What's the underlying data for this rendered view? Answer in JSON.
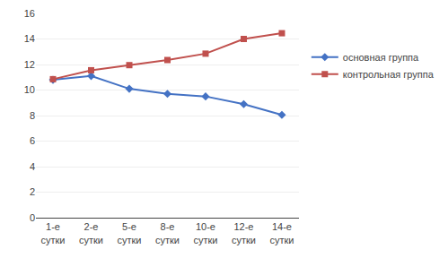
{
  "chart_data": {
    "type": "line",
    "categories": [
      "1-е\nсутки",
      "2-е\nсутки",
      "5-е\nсутки",
      "8-е\nсутки",
      "10-е\nсутки",
      "12-е\nсутки",
      "14-е\nсутки"
    ],
    "series": [
      {
        "name": "основная группа",
        "color": "#4472C4",
        "marker": "diamond",
        "values": [
          10.8,
          11.1,
          10.1,
          9.7,
          9.5,
          8.9,
          8.05
        ]
      },
      {
        "name": "контрольная группа",
        "color": "#C0504D",
        "marker": "square",
        "values": [
          10.85,
          11.55,
          11.95,
          12.35,
          12.85,
          14.0,
          14.45
        ]
      }
    ],
    "ylim": [
      0,
      16
    ],
    "yticks": [
      0,
      2,
      4,
      6,
      8,
      10,
      12,
      14,
      16
    ],
    "grid": true,
    "legend": "right"
  }
}
